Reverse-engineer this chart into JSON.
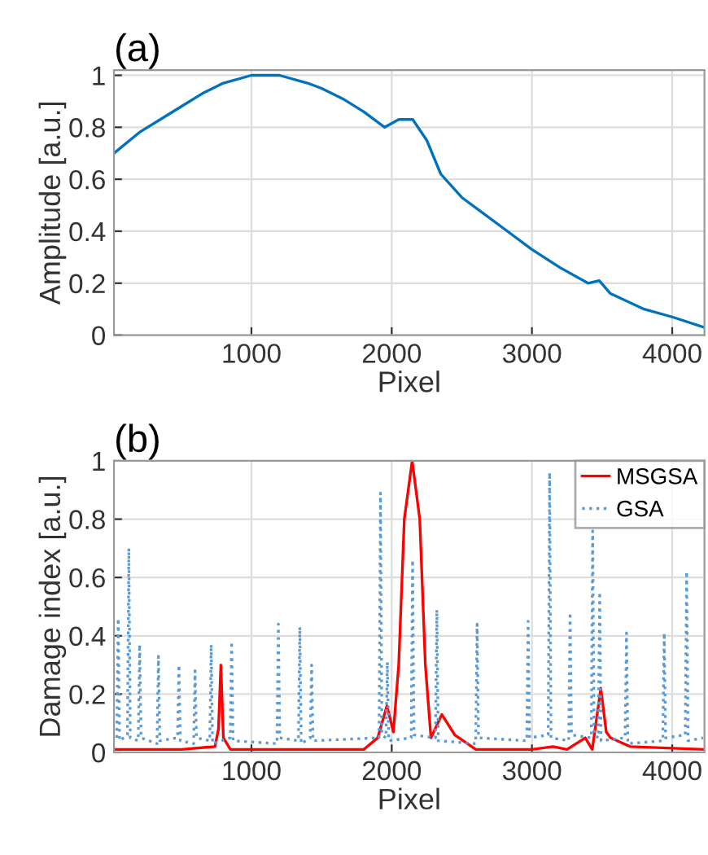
{
  "chart_data": [
    {
      "type": "line",
      "title": "(a)",
      "xlabel": "Pixel",
      "ylabel": "Amplitude [a.u.]",
      "xlim": [
        20,
        4230
      ],
      "ylim": [
        0,
        1.02
      ],
      "xticks": [
        1000,
        2000,
        3000,
        4000
      ],
      "yticks": [
        0,
        0.2,
        0.4,
        0.6,
        0.8,
        1
      ],
      "grid": true,
      "legend": false,
      "series": [
        {
          "color": "#0072bd",
          "line_style": "solid",
          "x": [
            20,
            200,
            350,
            500,
            650,
            800,
            1000,
            1200,
            1400,
            1500,
            1650,
            1800,
            1950,
            2050,
            2150,
            2250,
            2350,
            2500,
            2650,
            2800,
            3000,
            3200,
            3400,
            3480,
            3560,
            3800,
            4000,
            4230
          ],
          "values": [
            0.7,
            0.78,
            0.83,
            0.88,
            0.93,
            0.97,
            1.0,
            1.0,
            0.97,
            0.95,
            0.91,
            0.86,
            0.8,
            0.83,
            0.83,
            0.75,
            0.62,
            0.53,
            0.47,
            0.41,
            0.33,
            0.26,
            0.2,
            0.21,
            0.16,
            0.1,
            0.07,
            0.03
          ]
        }
      ]
    },
    {
      "type": "line",
      "title": "(b)",
      "xlabel": "Pixel",
      "ylabel": "Damage index [a.u.]",
      "xlim": [
        20,
        4230
      ],
      "ylim": [
        0,
        1
      ],
      "xticks": [
        1000,
        2000,
        3000,
        4000
      ],
      "yticks": [
        0,
        0.2,
        0.4,
        0.6,
        0.8,
        1
      ],
      "grid": true,
      "legend": "top right",
      "series": [
        {
          "name": "MSGSA",
          "color": "#ff0000",
          "line_style": "solid",
          "x": [
            20,
            500,
            740,
            765,
            782,
            800,
            850,
            1500,
            1800,
            1900,
            1966,
            2012,
            2050,
            2090,
            2146,
            2200,
            2240,
            2280,
            2357,
            2450,
            2600,
            3000,
            3150,
            3250,
            3380,
            3430,
            3491,
            3530,
            3560,
            3700,
            4230
          ],
          "values": [
            0.01,
            0.01,
            0.02,
            0.08,
            0.3,
            0.05,
            0.01,
            0.01,
            0.01,
            0.05,
            0.16,
            0.07,
            0.3,
            0.8,
            1.0,
            0.8,
            0.3,
            0.05,
            0.13,
            0.06,
            0.01,
            0.01,
            0.02,
            0.01,
            0.05,
            0.01,
            0.22,
            0.07,
            0.05,
            0.02,
            0.01
          ]
        },
        {
          "name": "GSA",
          "color": "#5b9bd5",
          "line_style": "dotted",
          "x": [
            40,
            50,
            60,
            116,
            126,
            136,
            193,
            203,
            213,
            327,
            337,
            347,
            473,
            483,
            493,
            588,
            598,
            608,
            703,
            713,
            723,
            849,
            859,
            869,
            1182,
            1192,
            1202,
            1335,
            1345,
            1355,
            1419,
            1429,
            1439,
            1910,
            1920,
            1930,
            1959,
            1969,
            1979,
            2139,
            2149,
            2159,
            2312,
            2322,
            2332,
            2599,
            2609,
            2619,
            2963,
            2973,
            2983,
            3116,
            3126,
            3136,
            3262,
            3272,
            3282,
            3423,
            3433,
            3443,
            3473,
            3483,
            3493,
            3664,
            3674,
            3684,
            3933,
            3943,
            3953,
            4093,
            4103,
            4113,
            4220
          ],
          "values": [
            0.05,
            0.46,
            0.04,
            0.06,
            0.7,
            0.05,
            0.04,
            0.37,
            0.05,
            0.03,
            0.33,
            0.04,
            0.05,
            0.3,
            0.04,
            0.03,
            0.28,
            0.05,
            0.04,
            0.37,
            0.03,
            0.05,
            0.38,
            0.04,
            0.03,
            0.44,
            0.05,
            0.04,
            0.43,
            0.03,
            0.05,
            0.3,
            0.04,
            0.05,
            0.89,
            0.06,
            0.05,
            0.31,
            0.04,
            0.05,
            0.66,
            0.06,
            0.05,
            0.49,
            0.04,
            0.03,
            0.44,
            0.05,
            0.04,
            0.45,
            0.05,
            0.06,
            0.96,
            0.05,
            0.04,
            0.48,
            0.06,
            0.05,
            0.76,
            0.06,
            0.05,
            0.55,
            0.04,
            0.05,
            0.41,
            0.03,
            0.04,
            0.41,
            0.05,
            0.06,
            0.62,
            0.04,
            0.05
          ]
        }
      ]
    }
  ]
}
